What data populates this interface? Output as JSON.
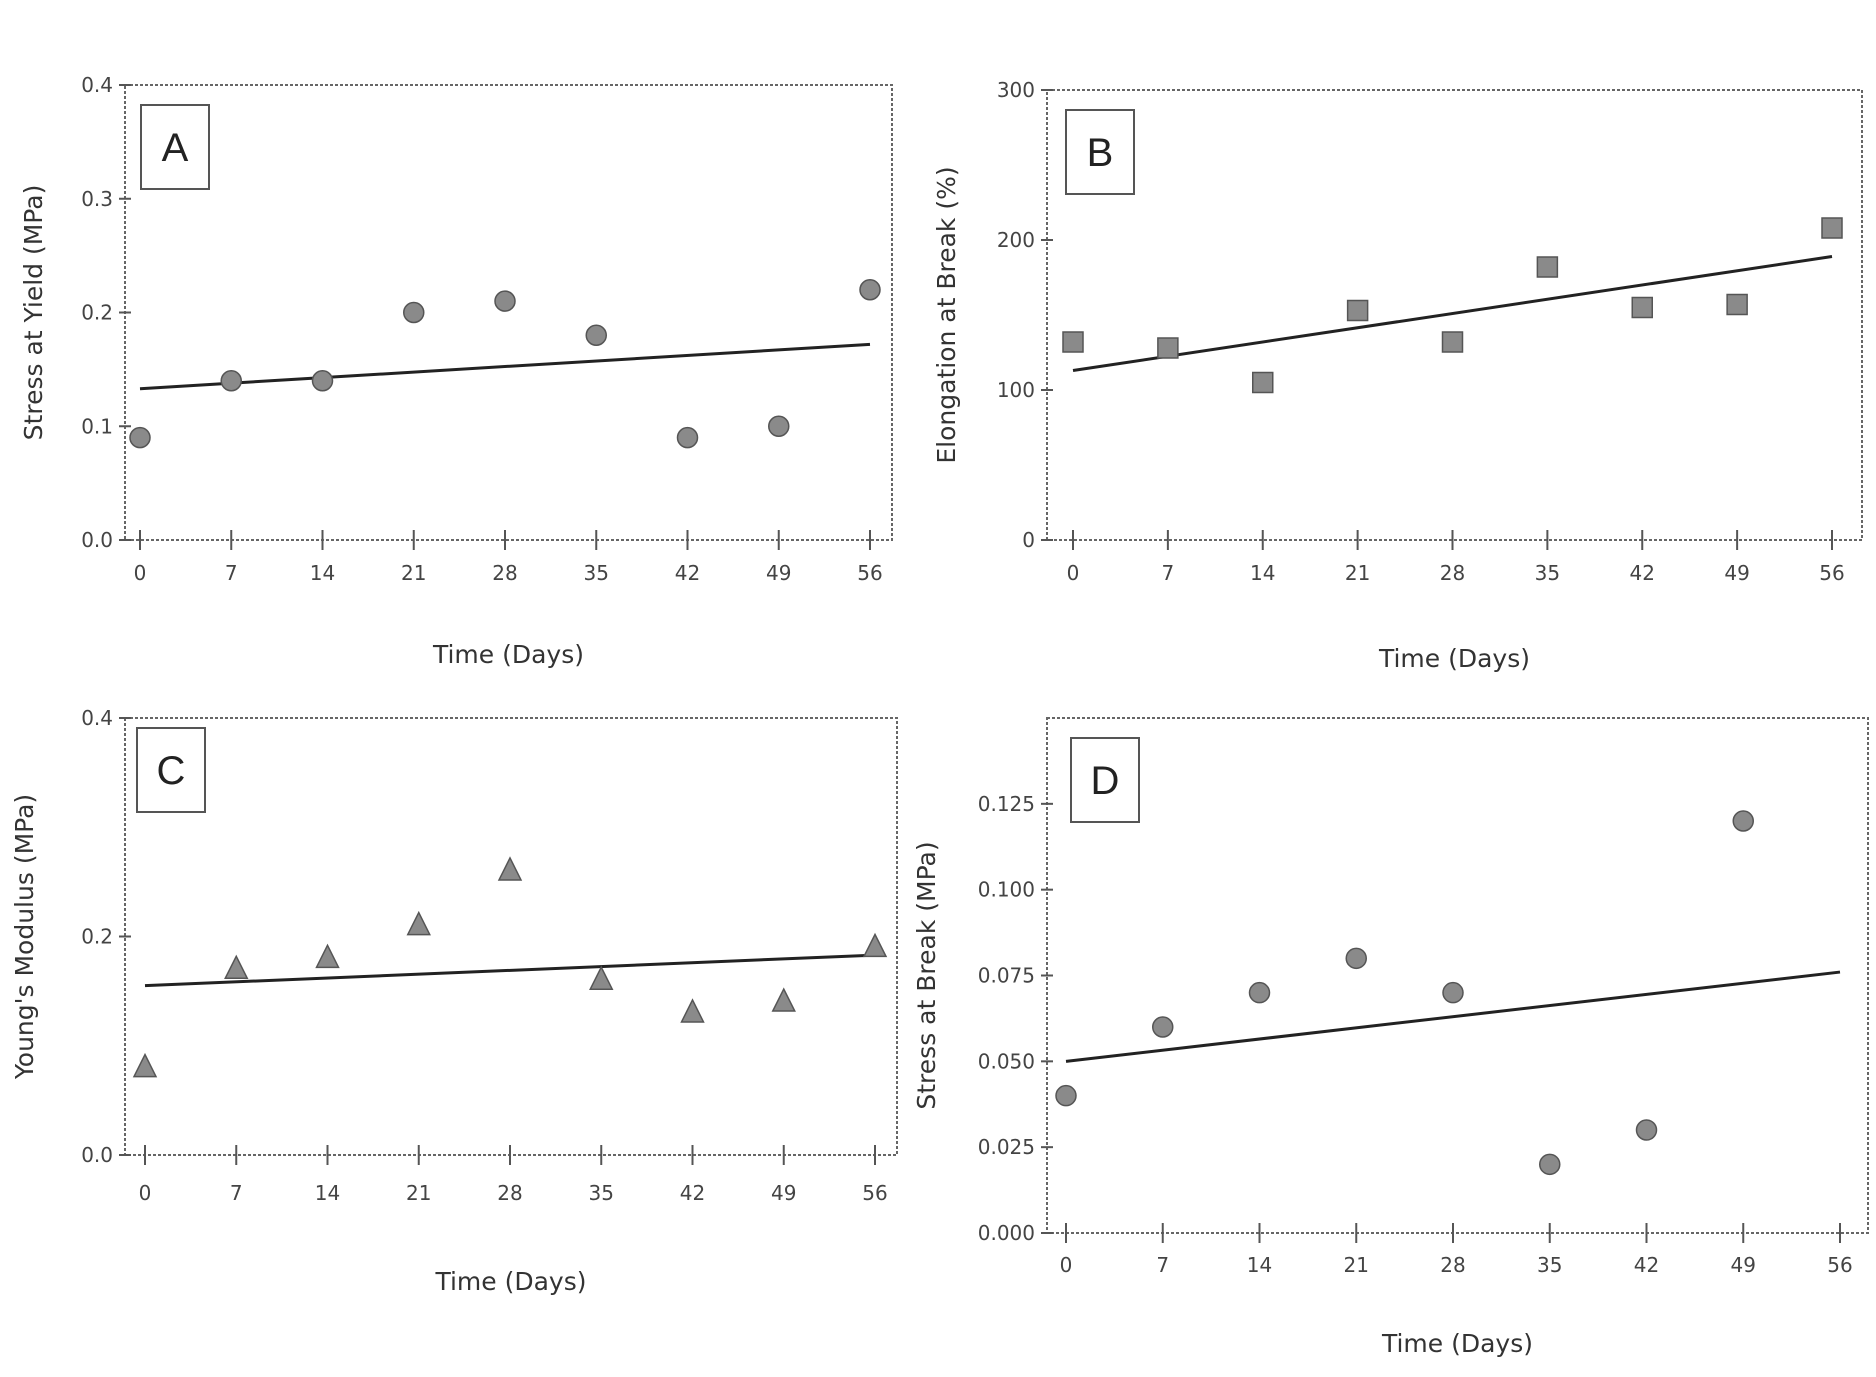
{
  "figure": {
    "colors": {
      "marker": "#8a8a8a",
      "line": "#222222",
      "frame": "#666666"
    }
  },
  "chart_data": [
    {
      "panel": "A",
      "type": "scatter",
      "marker": "circle",
      "xlabel": "Time (Days)",
      "ylabel": "Stress at Yield (MPa)",
      "x_ticks": [
        0,
        7,
        14,
        21,
        28,
        35,
        42,
        49,
        56
      ],
      "x_tick_labels": [
        "0",
        "7",
        "14",
        "21",
        "28",
        "35",
        "42",
        "49",
        "56"
      ],
      "y_ticks": [
        0.0,
        0.1,
        0.2,
        0.3,
        0.4
      ],
      "y_tick_labels": [
        "0.0",
        "0.1",
        "0.2",
        "0.3",
        "0.4"
      ],
      "ylim": [
        0,
        0.4
      ],
      "x": [
        0,
        7,
        14,
        21,
        28,
        35,
        42,
        49,
        56
      ],
      "y": [
        0.09,
        0.14,
        0.14,
        0.2,
        0.21,
        0.18,
        0.09,
        0.1,
        0.22
      ],
      "trendline": {
        "x": [
          0,
          56
        ],
        "y": [
          0.133,
          0.172
        ]
      }
    },
    {
      "panel": "B",
      "type": "scatter",
      "marker": "square",
      "xlabel": "Time (Days)",
      "ylabel": "Elongation at Break (%)",
      "x_ticks": [
        0,
        7,
        14,
        21,
        28,
        35,
        42,
        49,
        56
      ],
      "x_tick_labels": [
        "0",
        "7",
        "14",
        "21",
        "28",
        "35",
        "42",
        "49",
        "56"
      ],
      "y_ticks": [
        0,
        100,
        200,
        300
      ],
      "y_tick_labels": [
        "0",
        "100",
        "200",
        "300"
      ],
      "ylim": [
        0,
        300
      ],
      "x": [
        0,
        7,
        14,
        21,
        28,
        35,
        42,
        49,
        56
      ],
      "y": [
        132,
        128,
        105,
        153,
        132,
        182,
        155,
        157,
        208
      ],
      "trendline": {
        "x": [
          0,
          56
        ],
        "y": [
          113,
          189
        ]
      }
    },
    {
      "panel": "C",
      "type": "scatter",
      "marker": "triangle",
      "xlabel": "Time (Days)",
      "ylabel": "Young's Modulus (MPa)",
      "x_ticks": [
        0,
        7,
        14,
        21,
        28,
        35,
        42,
        49,
        56
      ],
      "x_tick_labels": [
        "0",
        "7",
        "14",
        "21",
        "28",
        "35",
        "42",
        "49",
        "56"
      ],
      "y_ticks": [
        0.0,
        0.2,
        0.4
      ],
      "y_tick_labels": [
        "0.0",
        "0.2",
        "0.4"
      ],
      "ylim": [
        0,
        0.4
      ],
      "x": [
        0,
        7,
        14,
        21,
        28,
        35,
        42,
        49,
        56
      ],
      "y": [
        0.08,
        0.17,
        0.18,
        0.21,
        0.26,
        0.16,
        0.13,
        0.14,
        0.19
      ],
      "trendline": {
        "x": [
          0,
          56
        ],
        "y": [
          0.155,
          0.183
        ]
      }
    },
    {
      "panel": "D",
      "type": "scatter",
      "marker": "circle",
      "xlabel": "Time (Days)",
      "ylabel": "Stress at Break (MPa)",
      "x_ticks": [
        0,
        7,
        14,
        21,
        28,
        35,
        42,
        49,
        56
      ],
      "x_tick_labels": [
        "0",
        "7",
        "14",
        "21",
        "28",
        "35",
        "42",
        "49",
        "56"
      ],
      "y_ticks": [
        0.0,
        0.025,
        0.05,
        0.075,
        0.1,
        0.125
      ],
      "y_tick_labels": [
        "0.000",
        "0.025",
        "0.050",
        "0.075",
        "0.100",
        "0.125"
      ],
      "ylim": [
        0,
        0.15
      ],
      "x": [
        0,
        7,
        14,
        21,
        28,
        35,
        42,
        49,
        56
      ],
      "y": [
        0.04,
        0.06,
        0.07,
        0.08,
        0.07,
        0.02,
        0.03,
        0.12,
        null
      ],
      "trendline": {
        "x": [
          0,
          56
        ],
        "y": [
          0.05,
          0.076
        ]
      }
    }
  ]
}
